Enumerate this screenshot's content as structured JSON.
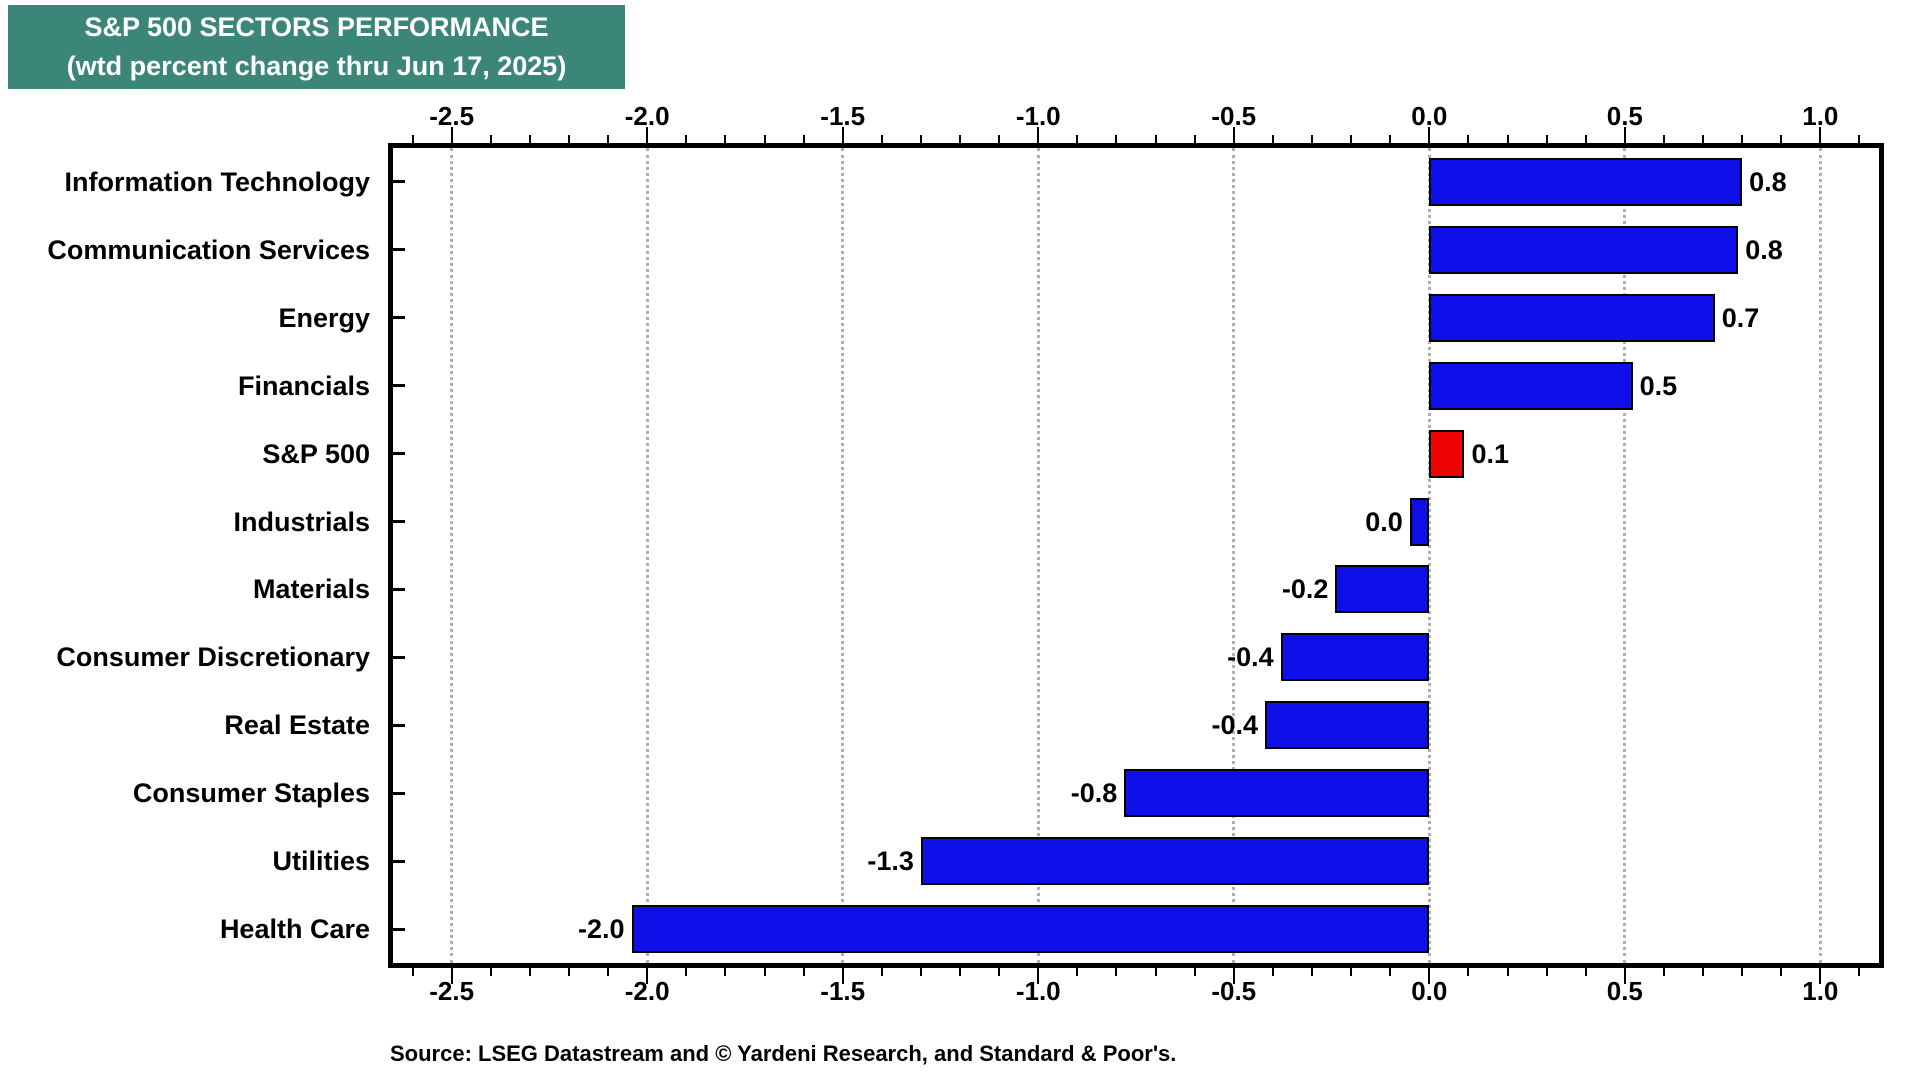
{
  "title": {
    "line1": "S&P 500 SECTORS PERFORMANCE",
    "line2": "(wtd percent change thru Jun 17, 2025)",
    "bg_color": "#3b8678",
    "text_color": "#ffffff"
  },
  "source": "Source: LSEG Datastream and © Yardeni Research, and Standard & Poor's.",
  "chart_data": {
    "type": "bar",
    "orientation": "horizontal",
    "title": "S&P 500 SECTORS PERFORMANCE",
    "subtitle": "(wtd percent change thru Jun 17, 2025)",
    "categories": [
      "Information Technology",
      "Communication Services",
      "Energy",
      "Financials",
      "S&P 500",
      "Industrials",
      "Materials",
      "Consumer Discretionary",
      "Real Estate",
      "Consumer Staples",
      "Utilities",
      "Health Care"
    ],
    "values": [
      0.8,
      0.8,
      0.7,
      0.5,
      0.1,
      0.0,
      -0.2,
      -0.4,
      -0.4,
      -0.8,
      -1.3,
      -2.0
    ],
    "value_labels": [
      "0.8",
      "0.8",
      "0.7",
      "0.5",
      "0.1",
      "0.0",
      "-0.2",
      "-0.4",
      "-0.4",
      "-0.8",
      "-1.3",
      "-2.0"
    ],
    "bar_values": [
      0.8,
      0.79,
      0.73,
      0.52,
      0.09,
      -0.05,
      -0.24,
      -0.38,
      -0.42,
      -0.78,
      -1.3,
      -2.04
    ],
    "highlight_category": "S&P 500",
    "xlabel": "",
    "ylabel": "",
    "xlim": [
      -2.65,
      1.15
    ],
    "x_major_ticks": [
      -2.5,
      -2.0,
      -1.5,
      -1.0,
      -0.5,
      0.0,
      0.5,
      1.0
    ],
    "x_tick_labels": [
      "-2.5",
      "-2.0",
      "-1.5",
      "-1.0",
      "-0.5",
      "0.0",
      "0.5",
      "1.0"
    ],
    "x_minor_step": 0.1,
    "grid": "vertical dotted gridlines at major ticks",
    "legend": "none",
    "colors": {
      "bar_blue": "#0f10e9",
      "bar_red": "#ee0404",
      "bar_edge": "#000000",
      "grid": "#b0b0b0",
      "axis": "#000000",
      "text": "#000000"
    }
  }
}
